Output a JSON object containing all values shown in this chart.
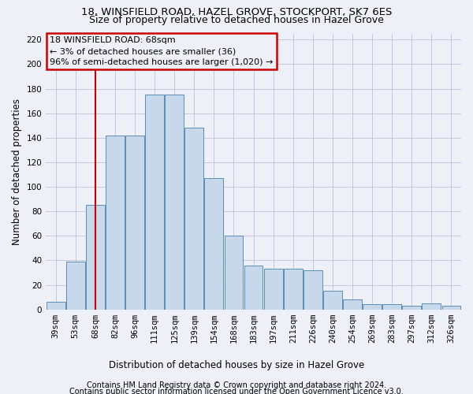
{
  "title1": "18, WINSFIELD ROAD, HAZEL GROVE, STOCKPORT, SK7 6ES",
  "title2": "Size of property relative to detached houses in Hazel Grove",
  "xlabel": "Distribution of detached houses by size in Hazel Grove",
  "ylabel": "Number of detached properties",
  "footer1": "Contains HM Land Registry data © Crown copyright and database right 2024.",
  "footer2": "Contains public sector information licensed under the Open Government Licence v3.0.",
  "annotation_line1": "18 WINSFIELD ROAD: 68sqm",
  "annotation_line2": "← 3% of detached houses are smaller (36)",
  "annotation_line3": "96% of semi-detached houses are larger (1,020) →",
  "bar_labels": [
    "39sqm",
    "53sqm",
    "68sqm",
    "82sqm",
    "96sqm",
    "111sqm",
    "125sqm",
    "139sqm",
    "154sqm",
    "168sqm",
    "183sqm",
    "197sqm",
    "211sqm",
    "226sqm",
    "240sqm",
    "254sqm",
    "269sqm",
    "283sqm",
    "297sqm",
    "312sqm",
    "326sqm"
  ],
  "bar_values": [
    6,
    39,
    85,
    142,
    142,
    175,
    175,
    148,
    107,
    60,
    36,
    33,
    33,
    32,
    15,
    8,
    4,
    4,
    3,
    5,
    3
  ],
  "bar_color": "#c8d8eb",
  "bar_edge_color": "#5b8db8",
  "marker_bar_index": 2,
  "marker_color": "#cc0000",
  "ylim": [
    0,
    225
  ],
  "yticks": [
    0,
    20,
    40,
    60,
    80,
    100,
    120,
    140,
    160,
    180,
    200,
    220
  ],
  "grid_color": "#c0c0d8",
  "bg_color": "#eef0f8",
  "annotation_box_color": "#cc0000",
  "title1_fontsize": 9.5,
  "title2_fontsize": 9.0,
  "axis_label_fontsize": 8.5,
  "tick_fontsize": 7.5,
  "footer_fontsize": 7.0,
  "annot_fontsize": 8.0
}
